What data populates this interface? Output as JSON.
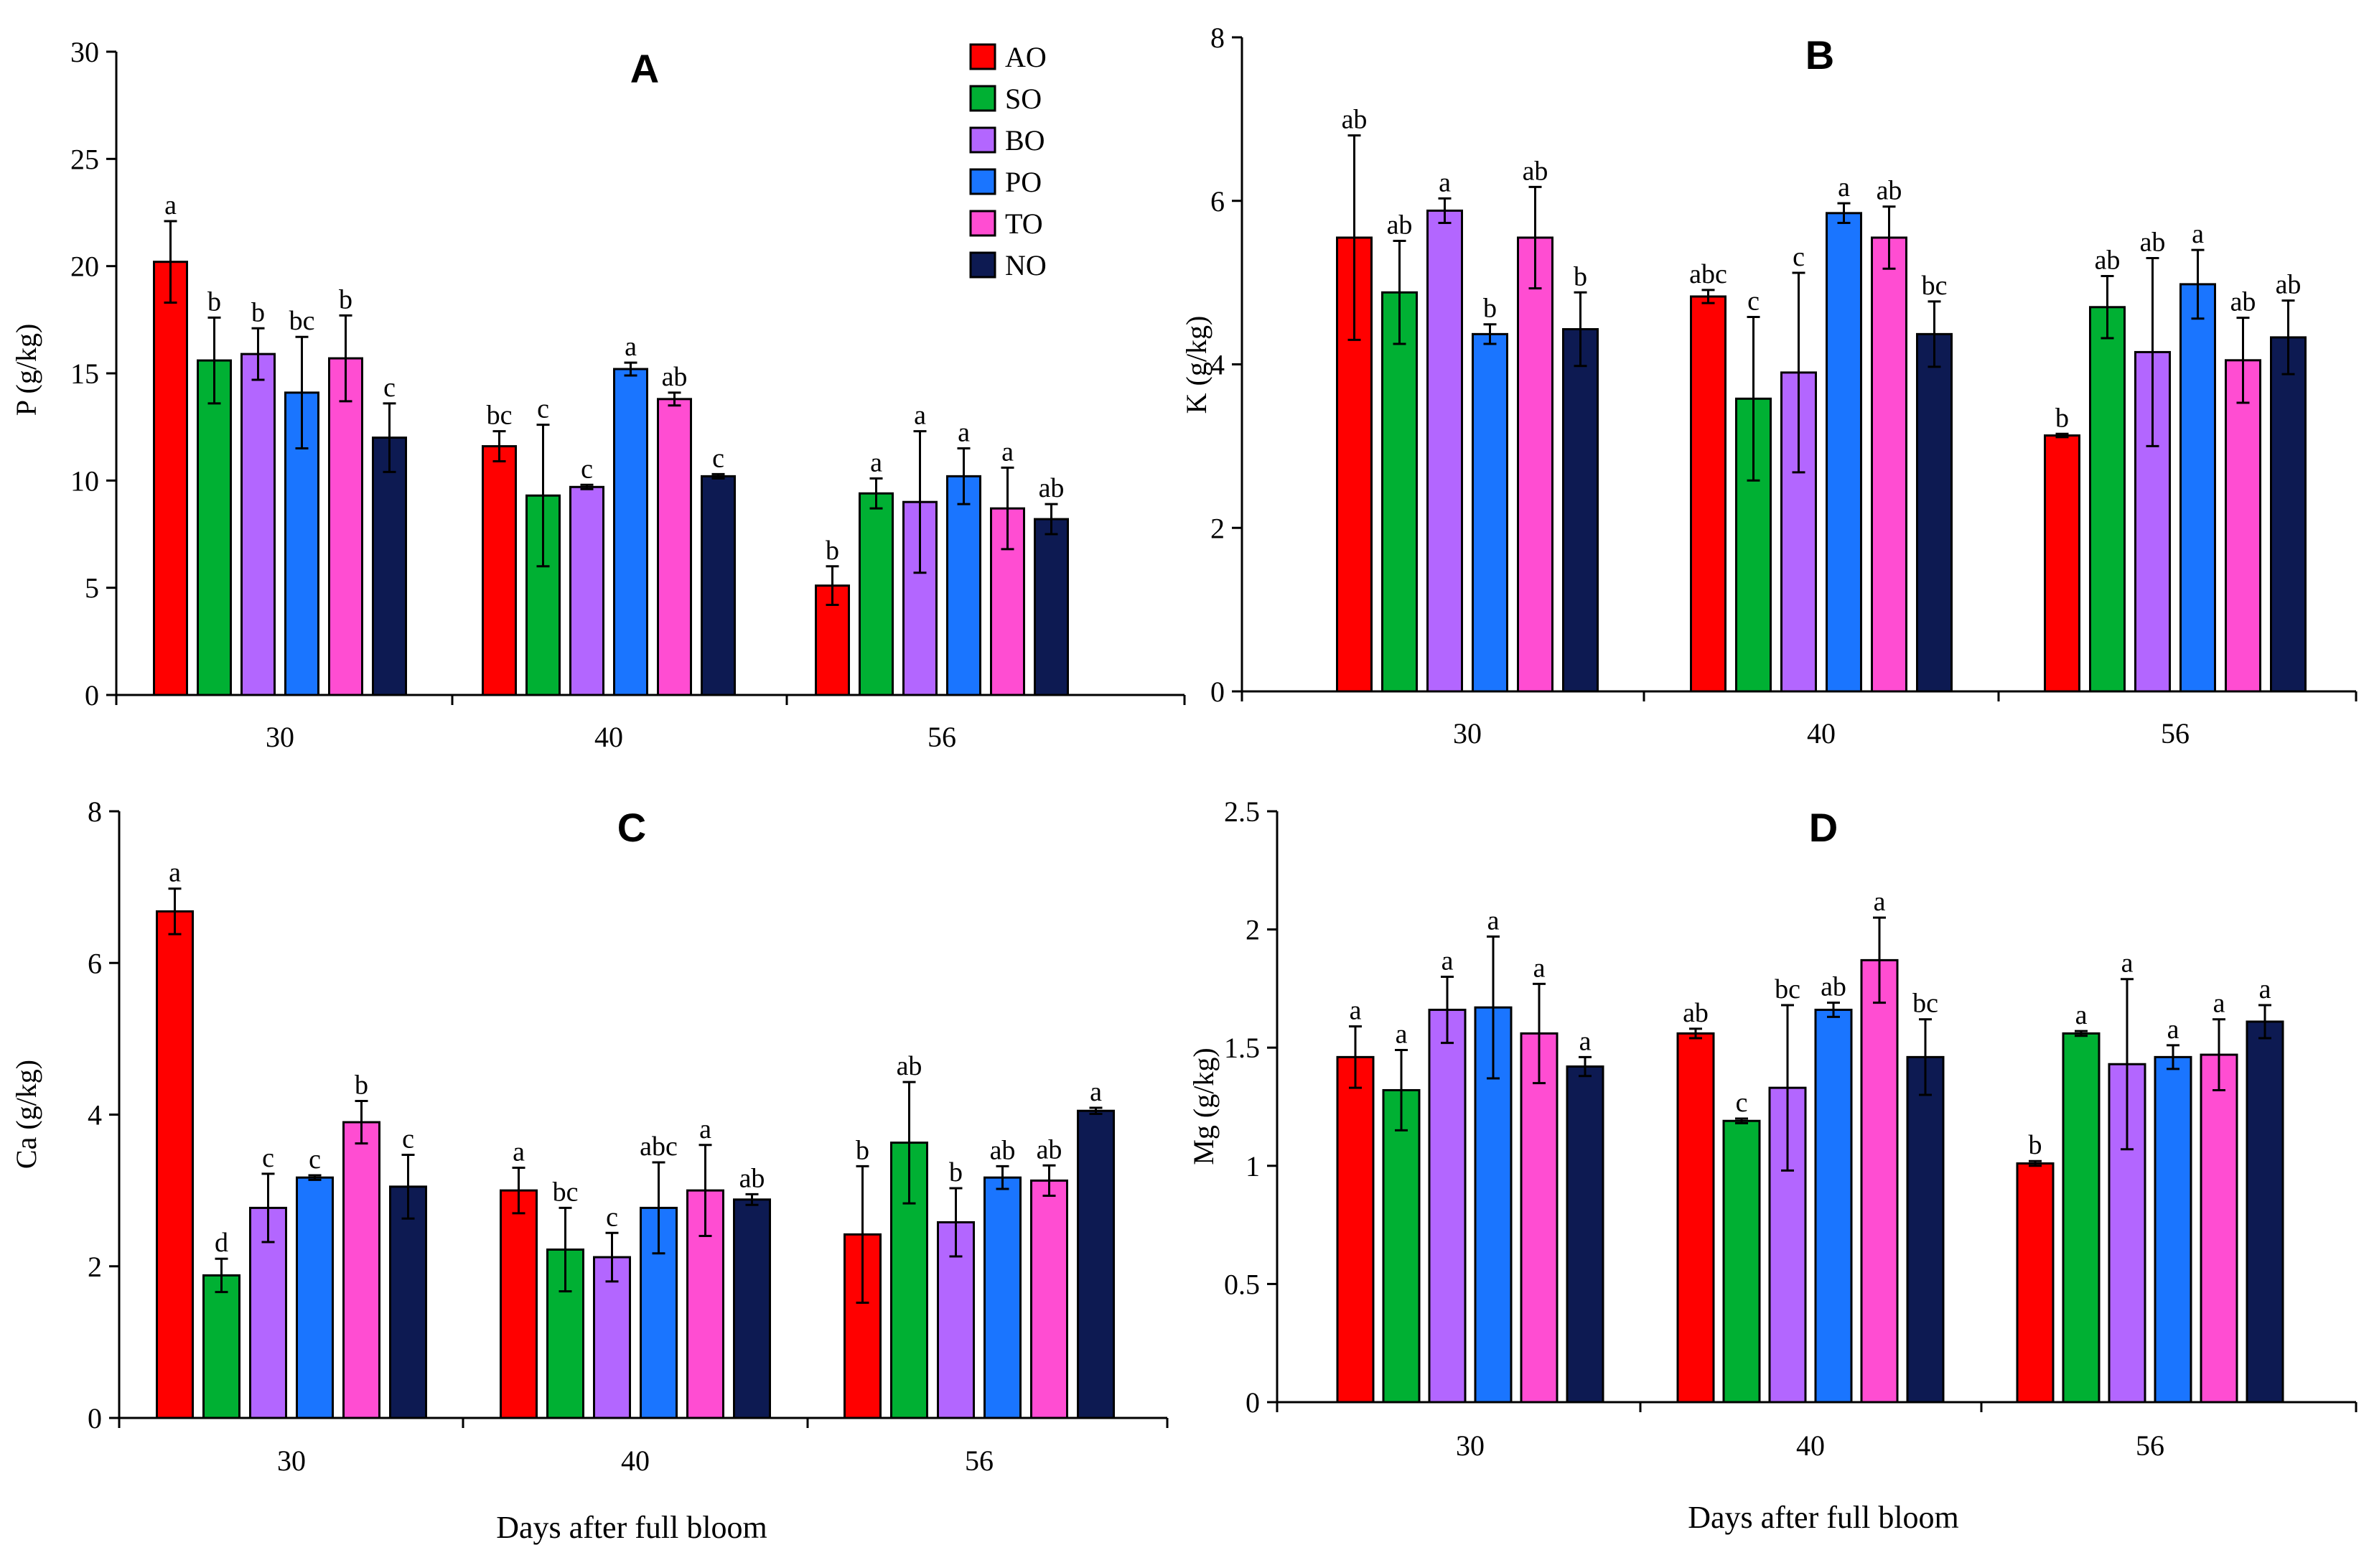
{
  "chart_data": [
    {
      "type": "bar",
      "title": "A",
      "ylabel": "P (g/kg)",
      "xlabel": "",
      "ylim": [
        0,
        30
      ],
      "yticks": [
        0,
        5,
        10,
        15,
        20,
        25,
        30
      ],
      "categories": [
        "30",
        "40",
        "56"
      ],
      "series": [
        {
          "name": "AO",
          "values": [
            20.2,
            11.6,
            5.1
          ],
          "errors": [
            1.9,
            0.7,
            0.9
          ],
          "labels": [
            "a",
            "bc",
            "b"
          ]
        },
        {
          "name": "SO",
          "values": [
            15.6,
            9.3,
            9.4
          ],
          "errors": [
            2.0,
            3.3,
            0.7
          ],
          "labels": [
            "b",
            "c",
            "a"
          ]
        },
        {
          "name": "BO",
          "values": [
            15.9,
            9.7,
            9.0
          ],
          "errors": [
            1.2,
            0.1,
            3.3
          ],
          "labels": [
            "b",
            "c",
            "a"
          ]
        },
        {
          "name": "PO",
          "values": [
            14.1,
            15.2,
            10.2
          ],
          "errors": [
            2.6,
            0.3,
            1.3
          ],
          "labels": [
            "bc",
            "a",
            "a"
          ]
        },
        {
          "name": "TO",
          "values": [
            15.7,
            13.8,
            8.7
          ],
          "errors": [
            2.0,
            0.3,
            1.9
          ],
          "labels": [
            "b",
            "ab",
            "a"
          ]
        },
        {
          "name": "NO",
          "values": [
            12.0,
            10.2,
            8.2
          ],
          "errors": [
            1.6,
            0.1,
            0.7
          ],
          "labels": [
            "c",
            "c",
            "ab"
          ]
        }
      ]
    },
    {
      "type": "bar",
      "title": "B",
      "ylabel": "K (g/kg)",
      "xlabel": "",
      "ylim": [
        0,
        8
      ],
      "yticks": [
        0,
        2,
        4,
        6,
        8
      ],
      "categories": [
        "30",
        "40",
        "56"
      ],
      "series": [
        {
          "name": "AO",
          "values": [
            5.55,
            4.83,
            3.13
          ],
          "errors": [
            1.25,
            0.08,
            0.02
          ],
          "labels": [
            "ab",
            "abc",
            "b"
          ]
        },
        {
          "name": "SO",
          "values": [
            4.88,
            3.58,
            4.7
          ],
          "errors": [
            0.63,
            1.0,
            0.38
          ],
          "labels": [
            "ab",
            "c",
            "ab"
          ]
        },
        {
          "name": "BO",
          "values": [
            5.88,
            3.9,
            4.15
          ],
          "errors": [
            0.15,
            1.22,
            1.15
          ],
          "labels": [
            "a",
            "c",
            "ab"
          ]
        },
        {
          "name": "PO",
          "values": [
            4.37,
            5.85,
            4.98
          ],
          "errors": [
            0.12,
            0.12,
            0.42
          ],
          "labels": [
            "b",
            "a",
            "a"
          ]
        },
        {
          "name": "TO",
          "values": [
            5.55,
            5.55,
            4.05
          ],
          "errors": [
            0.62,
            0.38,
            0.52
          ],
          "labels": [
            "ab",
            "ab",
            "ab"
          ]
        },
        {
          "name": "NO",
          "values": [
            4.43,
            4.37,
            4.33
          ],
          "errors": [
            0.45,
            0.4,
            0.45
          ],
          "labels": [
            "b",
            "bc",
            "ab"
          ]
        }
      ]
    },
    {
      "type": "bar",
      "title": "C",
      "ylabel": "Ca (g/kg)",
      "xlabel": "Days after full bloom",
      "ylim": [
        0,
        8
      ],
      "yticks": [
        0,
        2,
        4,
        6,
        8
      ],
      "categories": [
        "30",
        "40",
        "56"
      ],
      "series": [
        {
          "name": "AO",
          "values": [
            6.68,
            3.0,
            2.42
          ],
          "errors": [
            0.3,
            0.3,
            0.9
          ],
          "labels": [
            "a",
            "a",
            "b"
          ]
        },
        {
          "name": "SO",
          "values": [
            1.88,
            2.22,
            3.63
          ],
          "errors": [
            0.22,
            0.55,
            0.8
          ],
          "labels": [
            "d",
            "bc",
            "ab"
          ]
        },
        {
          "name": "BO",
          "values": [
            2.77,
            2.12,
            2.58
          ],
          "errors": [
            0.45,
            0.32,
            0.45
          ],
          "labels": [
            "c",
            "c",
            "b"
          ]
        },
        {
          "name": "PO",
          "values": [
            3.17,
            2.77,
            3.17
          ],
          "errors": [
            0.03,
            0.6,
            0.15
          ],
          "labels": [
            "c",
            "abc",
            "ab"
          ]
        },
        {
          "name": "TO",
          "values": [
            3.9,
            3.0,
            3.13
          ],
          "errors": [
            0.28,
            0.6,
            0.2
          ],
          "labels": [
            "b",
            "a",
            "ab"
          ]
        },
        {
          "name": "NO",
          "values": [
            3.05,
            2.88,
            4.05
          ],
          "errors": [
            0.42,
            0.07,
            0.04
          ],
          "labels": [
            "c",
            "ab",
            "a"
          ]
        }
      ]
    },
    {
      "type": "bar",
      "title": "D",
      "ylabel": "Mg (g/kg)",
      "xlabel": "Days after full bloom",
      "ylim": [
        0,
        2.5
      ],
      "yticks": [
        0,
        0.5,
        1,
        1.5,
        2,
        2.5
      ],
      "categories": [
        "30",
        "40",
        "56"
      ],
      "series": [
        {
          "name": "AO",
          "values": [
            1.46,
            1.56,
            1.01
          ],
          "errors": [
            0.13,
            0.02,
            0.01
          ],
          "labels": [
            "a",
            "ab",
            "b"
          ]
        },
        {
          "name": "SO",
          "values": [
            1.32,
            1.19,
            1.56
          ],
          "errors": [
            0.17,
            0.01,
            0.01
          ],
          "labels": [
            "a",
            "c",
            "a"
          ]
        },
        {
          "name": "BO",
          "values": [
            1.66,
            1.33,
            1.43
          ],
          "errors": [
            0.14,
            0.35,
            0.36
          ],
          "labels": [
            "a",
            "bc",
            "a"
          ]
        },
        {
          "name": "PO",
          "values": [
            1.67,
            1.66,
            1.46
          ],
          "errors": [
            0.3,
            0.03,
            0.05
          ],
          "labels": [
            "a",
            "ab",
            "a"
          ]
        },
        {
          "name": "TO",
          "values": [
            1.56,
            1.87,
            1.47
          ],
          "errors": [
            0.21,
            0.18,
            0.15
          ],
          "labels": [
            "a",
            "a",
            "a"
          ]
        },
        {
          "name": "NO",
          "values": [
            1.42,
            1.46,
            1.61
          ],
          "errors": [
            0.04,
            0.16,
            0.07
          ],
          "labels": [
            "a",
            "bc",
            "a"
          ]
        }
      ]
    }
  ],
  "legend": {
    "entries": [
      "AO",
      "SO",
      "BO",
      "PO",
      "TO",
      "NO"
    ]
  },
  "colors": {
    "AO": "#ff0000",
    "SO": "#00b033",
    "BO": "#b366ff",
    "PO": "#1a75ff",
    "TO": "#ff4dd2",
    "NO": "#0d1a52",
    "axis": "#000000",
    "bar_edge": "#000000"
  }
}
